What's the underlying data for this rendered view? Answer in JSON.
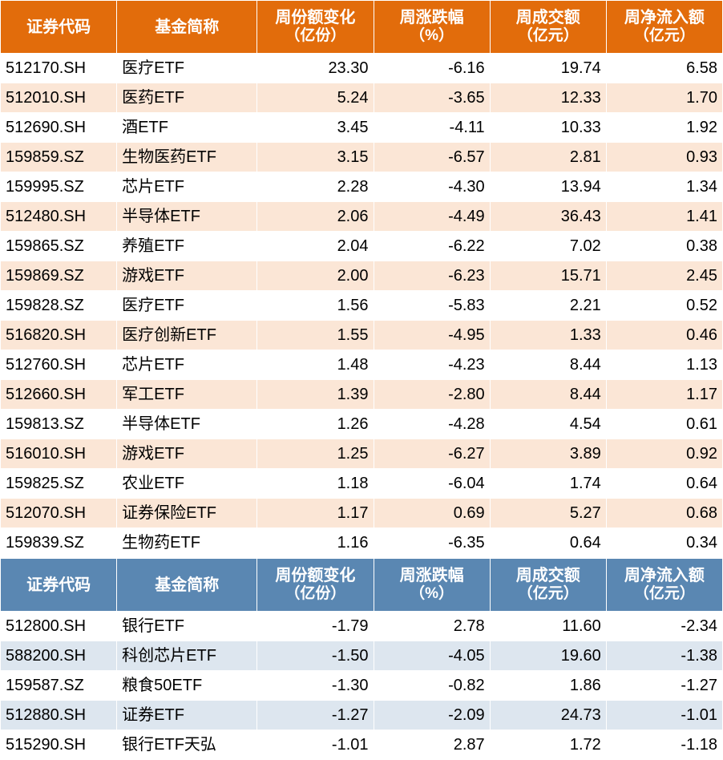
{
  "colors": {
    "header_orange": "#e26c0b",
    "header_blue": "#5a87b2",
    "band_orange": "#fbe6d6",
    "band_blue": "#dde6ef",
    "band_white": "#ffffff",
    "text": "#000000",
    "header_text": "#ffffff"
  },
  "columns": {
    "code": "证券代码",
    "name": "基金简称",
    "share_l1": "周份额变化",
    "share_l2": "（亿份）",
    "chg_l1": "周涨跌幅",
    "chg_l2": "（%）",
    "vol_l1": "周成交额",
    "vol_l2": "（亿元）",
    "flow_l1": "周净流入额",
    "flow_l2": "（亿元）"
  },
  "table1": {
    "rows": [
      {
        "code": "512170.SH",
        "name": "医疗ETF",
        "share": "23.30",
        "chg": "-6.16",
        "vol": "19.74",
        "flow": "6.58"
      },
      {
        "code": "512010.SH",
        "name": "医药ETF",
        "share": "5.24",
        "chg": "-3.65",
        "vol": "12.33",
        "flow": "1.70"
      },
      {
        "code": "512690.SH",
        "name": "酒ETF",
        "share": "3.45",
        "chg": "-4.11",
        "vol": "10.33",
        "flow": "1.92"
      },
      {
        "code": "159859.SZ",
        "name": "生物医药ETF",
        "share": "3.15",
        "chg": "-6.57",
        "vol": "2.81",
        "flow": "0.93"
      },
      {
        "code": "159995.SZ",
        "name": "芯片ETF",
        "share": "2.28",
        "chg": "-4.30",
        "vol": "13.94",
        "flow": "1.34"
      },
      {
        "code": "512480.SH",
        "name": "半导体ETF",
        "share": "2.06",
        "chg": "-4.49",
        "vol": "36.43",
        "flow": "1.41"
      },
      {
        "code": "159865.SZ",
        "name": "养殖ETF",
        "share": "2.04",
        "chg": "-6.22",
        "vol": "7.02",
        "flow": "0.38"
      },
      {
        "code": "159869.SZ",
        "name": "游戏ETF",
        "share": "2.00",
        "chg": "-6.23",
        "vol": "15.71",
        "flow": "2.45"
      },
      {
        "code": "159828.SZ",
        "name": "医疗ETF",
        "share": "1.56",
        "chg": "-5.83",
        "vol": "2.21",
        "flow": "0.52"
      },
      {
        "code": "516820.SH",
        "name": "医疗创新ETF",
        "share": "1.55",
        "chg": "-4.95",
        "vol": "1.33",
        "flow": "0.46"
      },
      {
        "code": "512760.SH",
        "name": "芯片ETF",
        "share": "1.48",
        "chg": "-4.23",
        "vol": "8.44",
        "flow": "1.13"
      },
      {
        "code": "512660.SH",
        "name": "军工ETF",
        "share": "1.39",
        "chg": "-2.80",
        "vol": "8.44",
        "flow": "1.17"
      },
      {
        "code": "159813.SZ",
        "name": "半导体ETF",
        "share": "1.26",
        "chg": "-4.28",
        "vol": "4.54",
        "flow": "0.61"
      },
      {
        "code": "516010.SH",
        "name": "游戏ETF",
        "share": "1.25",
        "chg": "-6.27",
        "vol": "3.89",
        "flow": "0.92"
      },
      {
        "code": "159825.SZ",
        "name": "农业ETF",
        "share": "1.18",
        "chg": "-6.04",
        "vol": "1.74",
        "flow": "0.64"
      },
      {
        "code": "512070.SH",
        "name": "证券保险ETF",
        "share": "1.17",
        "chg": "0.69",
        "vol": "5.27",
        "flow": "0.68"
      },
      {
        "code": "159839.SZ",
        "name": "生物药ETF",
        "share": "1.16",
        "chg": "-6.35",
        "vol": "0.64",
        "flow": "0.34"
      }
    ]
  },
  "table2": {
    "rows": [
      {
        "code": "512800.SH",
        "name": "银行ETF",
        "share": "-1.79",
        "chg": "2.78",
        "vol": "11.60",
        "flow": "-2.34"
      },
      {
        "code": "588200.SH",
        "name": "科创芯片ETF",
        "share": "-1.50",
        "chg": "-4.05",
        "vol": "19.60",
        "flow": "-1.38"
      },
      {
        "code": "159587.SZ",
        "name": "粮食50ETF",
        "share": "-1.30",
        "chg": "-0.82",
        "vol": "1.86",
        "flow": "-1.27"
      },
      {
        "code": "512880.SH",
        "name": "证券ETF",
        "share": "-1.27",
        "chg": "-2.09",
        "vol": "24.73",
        "flow": "-1.01"
      },
      {
        "code": "515290.SH",
        "name": "银行ETF天弘",
        "share": "-1.01",
        "chg": "2.87",
        "vol": "1.72",
        "flow": "-1.18"
      }
    ]
  }
}
